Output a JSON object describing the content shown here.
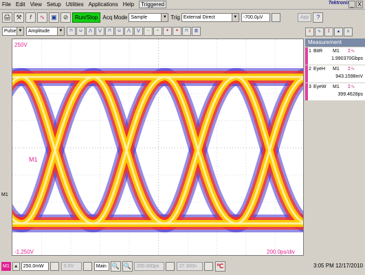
{
  "menu": [
    "File",
    "Edit",
    "View",
    "Setup",
    "Utilities",
    "Applications",
    "Help"
  ],
  "menu_status": "Triggered",
  "brand": "Tektronix",
  "window_buttons": [
    "_",
    "X"
  ],
  "toolbar": {
    "run_stop": "Run/Stop",
    "acq_mode_label": "Acq Mode",
    "acq_mode_value": "Sample",
    "trig_label": "Trig",
    "trig_value": "External Direct",
    "trig_level": "-700.0µV",
    "app_label": "App"
  },
  "toolbar2": {
    "pulse_value": "Pulse",
    "amplitude_value": "Amplitude"
  },
  "scope": {
    "top_level": "250V",
    "bottom_level": "-1.250V",
    "time_div": "200.0ps/div",
    "marker": "M1",
    "trace_label": "M1",
    "colors": {
      "hot": "#ffd000",
      "mid": "#ff3020",
      "cold": "#4030d0"
    }
  },
  "measurement": {
    "header": "Measurement",
    "items": [
      {
        "index": "1",
        "name": "BitR",
        "source": "M1",
        "value": "1.990370Gbps"
      },
      {
        "index": "2",
        "name": "EyeH",
        "source": "M1",
        "value": "943.1598mV"
      },
      {
        "index": "3",
        "name": "EyeW",
        "source": "M1",
        "value": "399.4628ps"
      }
    ]
  },
  "statusbar": {
    "channel": "M1",
    "scale": "250.0mW",
    "offset": "0.0V",
    "timebase": "Main",
    "horiz_pos": "200.000ps",
    "horiz_ref": "27.300n",
    "datetime": "3:05 PM 12/17/2010"
  }
}
